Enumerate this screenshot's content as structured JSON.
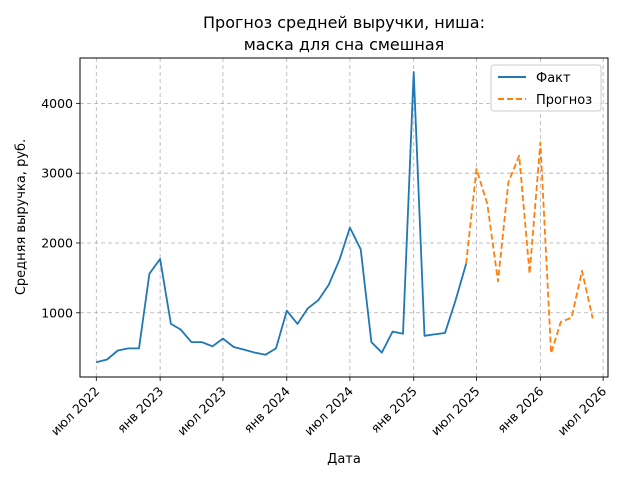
{
  "chart_data": {
    "type": "line",
    "title": [
      "Прогноз средней выручки, ниша:",
      "маска для сна смешная"
    ],
    "xlabel": "Дата",
    "ylabel": "Средняя выручка, руб.",
    "xlim": [
      "2022-05-15",
      "2026-07-15"
    ],
    "ylim": [
      80,
      4650
    ],
    "grid": true,
    "legend_position": "top-right",
    "x_ticks": [
      {
        "date": "2022-07-01",
        "label": "июл 2022"
      },
      {
        "date": "2023-01-01",
        "label": "янв 2023"
      },
      {
        "date": "2023-07-01",
        "label": "июл 2023"
      },
      {
        "date": "2024-01-01",
        "label": "янв 2024"
      },
      {
        "date": "2024-07-01",
        "label": "июл 2024"
      },
      {
        "date": "2025-01-01",
        "label": "янв 2025"
      },
      {
        "date": "2025-07-01",
        "label": "июл 2025"
      },
      {
        "date": "2026-01-01",
        "label": "янв 2026"
      },
      {
        "date": "2026-07-01",
        "label": "июл 2026"
      }
    ],
    "y_ticks": [
      {
        "value": 1000,
        "label": "1000"
      },
      {
        "value": 2000,
        "label": "2000"
      },
      {
        "value": 3000,
        "label": "3000"
      },
      {
        "value": 4000,
        "label": "4000"
      }
    ],
    "series": [
      {
        "name": "Факт",
        "color": "#1f77b4",
        "style": "solid",
        "points": [
          [
            "2022-07-01",
            290
          ],
          [
            "2022-08-01",
            330
          ],
          [
            "2022-09-01",
            460
          ],
          [
            "2022-10-01",
            490
          ],
          [
            "2022-11-01",
            490
          ],
          [
            "2022-12-01",
            1560
          ],
          [
            "2023-01-01",
            1770
          ],
          [
            "2023-02-01",
            840
          ],
          [
            "2023-03-01",
            760
          ],
          [
            "2023-04-01",
            580
          ],
          [
            "2023-05-01",
            580
          ],
          [
            "2023-06-01",
            520
          ],
          [
            "2023-07-01",
            630
          ],
          [
            "2023-08-01",
            510
          ],
          [
            "2023-09-01",
            470
          ],
          [
            "2023-10-01",
            430
          ],
          [
            "2023-11-01",
            400
          ],
          [
            "2023-12-01",
            490
          ],
          [
            "2024-01-01",
            1030
          ],
          [
            "2024-02-01",
            840
          ],
          [
            "2024-03-01",
            1060
          ],
          [
            "2024-04-01",
            1180
          ],
          [
            "2024-05-01",
            1400
          ],
          [
            "2024-06-01",
            1760
          ],
          [
            "2024-07-01",
            2220
          ],
          [
            "2024-08-01",
            1910
          ],
          [
            "2024-09-01",
            580
          ],
          [
            "2024-10-01",
            430
          ],
          [
            "2024-11-01",
            730
          ],
          [
            "2024-12-01",
            700
          ],
          [
            "2025-01-01",
            4450
          ],
          [
            "2025-02-01",
            670
          ],
          [
            "2025-03-01",
            690
          ],
          [
            "2025-04-01",
            710
          ],
          [
            "2025-05-01",
            1170
          ],
          [
            "2025-06-01",
            1700
          ]
        ]
      },
      {
        "name": "Прогноз",
        "color": "#ff7f0e",
        "style": "dashed",
        "points": [
          [
            "2025-06-01",
            1700
          ],
          [
            "2025-07-01",
            3060
          ],
          [
            "2025-08-01",
            2560
          ],
          [
            "2025-09-01",
            1450
          ],
          [
            "2025-10-01",
            2870
          ],
          [
            "2025-11-01",
            3250
          ],
          [
            "2025-12-01",
            1560
          ],
          [
            "2026-01-01",
            3440
          ],
          [
            "2026-02-01",
            420
          ],
          [
            "2026-03-01",
            870
          ],
          [
            "2026-04-01",
            930
          ],
          [
            "2026-05-01",
            1600
          ],
          [
            "2026-06-01",
            920
          ]
        ]
      }
    ]
  }
}
